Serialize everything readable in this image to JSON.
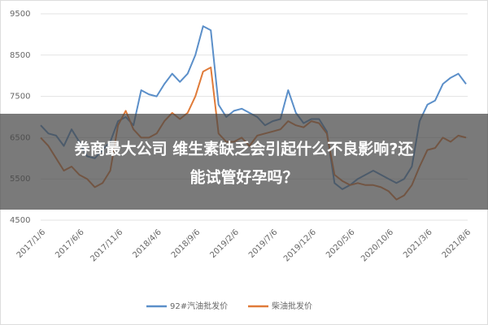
{
  "chart_data": {
    "type": "line",
    "categories": [
      "2017/1/6",
      null,
      null,
      null,
      null,
      "2017/6/6",
      null,
      null,
      null,
      null,
      "2017/11/6",
      null,
      null,
      null,
      null,
      "2018/4/6",
      null,
      null,
      null,
      null,
      "2018/9/6",
      null,
      null,
      null,
      null,
      "2019/2/6",
      null,
      null,
      null,
      null,
      "2019/7/6",
      null,
      null,
      null,
      null,
      "2019/12/6",
      null,
      null,
      null,
      null,
      "2020/5/6",
      null,
      null,
      null,
      null,
      "2020/10/6",
      null,
      null,
      null,
      null,
      "2021/3/6",
      null,
      null,
      null,
      null,
      "2021/8/6"
    ],
    "series": [
      {
        "name": "92#汽油批发价",
        "color": "#5b8fc9",
        "values": [
          6800,
          6600,
          6550,
          6300,
          6700,
          6400,
          6050,
          6000,
          6200,
          6400,
          6900,
          7000,
          6800,
          7650,
          7550,
          7500,
          7800,
          8050,
          7850,
          8050,
          8500,
          9200,
          9100,
          7300,
          7000,
          7150,
          7200,
          7100,
          7000,
          6800,
          6900,
          6950,
          7650,
          7100,
          6850,
          6950,
          6950,
          6650,
          5400,
          5250,
          5350,
          5500,
          5600,
          5700,
          5600,
          5500,
          5400,
          5500,
          5800,
          6900,
          7300,
          7400,
          7800,
          7950,
          8050,
          7800
        ]
      },
      {
        "name": "柴油批发价",
        "color": "#e07b39",
        "values": [
          6500,
          6300,
          6000,
          5700,
          5800,
          5600,
          5500,
          5300,
          5400,
          5700,
          6800,
          7150,
          6700,
          6500,
          6500,
          6600,
          6900,
          7100,
          6950,
          7100,
          7500,
          8100,
          8200,
          6600,
          6400,
          6400,
          6500,
          6300,
          6550,
          6600,
          6650,
          6700,
          6900,
          6800,
          6750,
          6900,
          6850,
          6600,
          5600,
          5450,
          5350,
          5400,
          5350,
          5350,
          5300,
          5200,
          5000,
          5100,
          5350,
          5800,
          6200,
          6250,
          6500,
          6400,
          6550,
          6500
        ]
      }
    ],
    "ylim": [
      4500,
      9500
    ],
    "yticks": [
      4500,
      5500,
      6500,
      7500,
      8500,
      9500
    ],
    "grid": true
  },
  "banner": {
    "lines": [
      "券商最大公司 维生素缺乏会引起什么不良影响?还",
      "能试管好孕吗？"
    ]
  }
}
